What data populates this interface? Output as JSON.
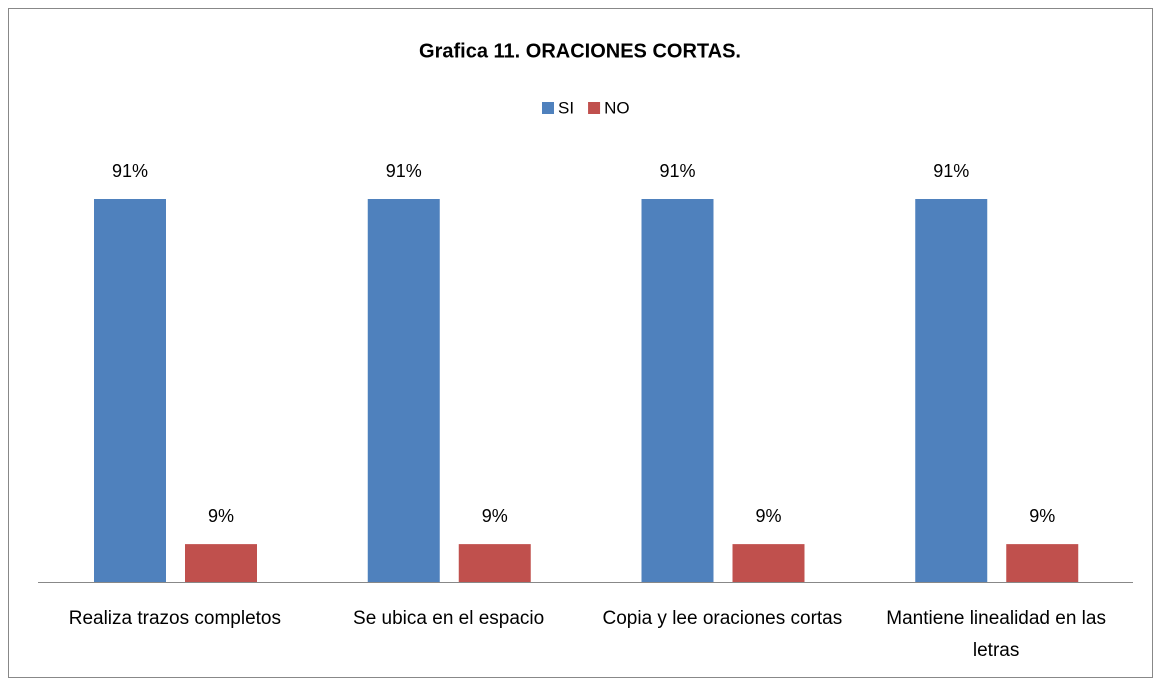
{
  "chart_data": {
    "type": "bar",
    "title": "Grafica 11.  ORACIONES CORTAS.",
    "categories": [
      "Realiza trazos completos",
      "Se ubica en el espacio",
      "Copia y lee oraciones cortas",
      "Mantiene linealidad en las letras"
    ],
    "series": [
      {
        "name": "SI",
        "color": "#4f81bd",
        "values": [
          91,
          91,
          91,
          91
        ],
        "value_labels": [
          "91%",
          "91%",
          "91%",
          "91%"
        ]
      },
      {
        "name": "NO",
        "color": "#c0504d",
        "values": [
          9,
          9,
          9,
          9
        ],
        "value_labels": [
          "9%",
          "9%",
          "9%",
          "9%"
        ]
      }
    ],
    "legend": "top"
  }
}
